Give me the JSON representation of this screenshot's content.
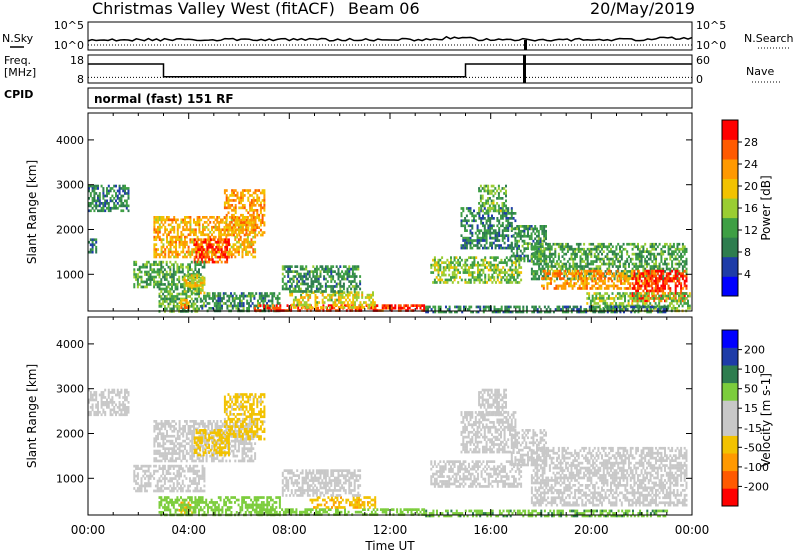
{
  "header": {
    "station": "Christmas Valley West (fitACF)",
    "beam": "Beam 06",
    "date": "20/May/2019"
  },
  "left_labels": {
    "nsky": "N.Sky",
    "freq_line1": "Freq.",
    "freq_line2": "[MHz]",
    "cpid": "CPID"
  },
  "right_labels": {
    "nsearch": "N.Search",
    "nave": "Nave"
  },
  "mode_label": "normal (fast) 151 RF",
  "colors": {
    "power_scale": [
      "#0000ff",
      "#1e3ca8",
      "#2e7d4f",
      "#3e9f44",
      "#9acd32",
      "#f2c200",
      "#ff9900",
      "#ff5a00",
      "#ff0000"
    ],
    "velocity_scale": [
      "#ff0000",
      "#ff5a00",
      "#ff9900",
      "#f2c200",
      "#c8c8c8",
      "#c8c8c8",
      "#7ccd3c",
      "#2e7d4f",
      "#1e3ca8",
      "#0000ff"
    ]
  },
  "chart_data": [
    {
      "type": "line",
      "name": "noise",
      "y_left_ticks": [
        "10^5",
        "10^0"
      ],
      "y_right_ticks": [
        "10^5",
        "10^0"
      ]
    },
    {
      "type": "line",
      "name": "frequency",
      "y_left_ticks": [
        "18",
        "8"
      ],
      "y_right_ticks": [
        "60",
        "0"
      ],
      "ylim_left": [
        8,
        18
      ],
      "ylim_right": [
        0,
        60
      ],
      "frequency_steps": [
        {
          "t": 0,
          "f": 14.8
        },
        {
          "t": 3.0,
          "f": 14.8
        },
        {
          "t": 3.0,
          "f": 10.2
        },
        {
          "t": 15.0,
          "f": 10.2
        },
        {
          "t": 15.0,
          "f": 14.8
        },
        {
          "t": 24.0,
          "f": 14.8
        }
      ],
      "nave_level": 12
    },
    {
      "type": "heatmap",
      "name": "power",
      "ylabel": "Slant Range [km]",
      "yticks": [
        1000,
        2000,
        3000,
        4000
      ],
      "ylim": [
        180,
        4600
      ],
      "xlim": [
        0,
        24
      ],
      "colorbar_label": "Power [dB]",
      "colorbar_ticks": [
        "4",
        "8",
        "12",
        "16",
        "20",
        "24",
        "28"
      ],
      "clim": [
        0,
        30
      ],
      "regions": [
        {
          "t0": 0.0,
          "t1": 1.6,
          "r0": 2400,
          "r1": 3000,
          "v": 9
        },
        {
          "t0": 0.0,
          "t1": 0.3,
          "r0": 1500,
          "r1": 1800,
          "v": 8
        },
        {
          "t0": 2.6,
          "t1": 6.6,
          "r0": 1400,
          "r1": 2300,
          "v": 20
        },
        {
          "t0": 4.2,
          "t1": 5.6,
          "r0": 1300,
          "r1": 1800,
          "v": 26
        },
        {
          "t0": 5.4,
          "t1": 7.0,
          "r0": 1900,
          "r1": 2900,
          "v": 21
        },
        {
          "t0": 1.8,
          "t1": 4.6,
          "r0": 700,
          "r1": 1300,
          "v": 12
        },
        {
          "t0": 3.8,
          "t1": 4.6,
          "r0": 600,
          "r1": 1000,
          "v": 18
        },
        {
          "t0": 2.8,
          "t1": 4.5,
          "r0": 200,
          "r1": 700,
          "v": 12
        },
        {
          "t0": 3.6,
          "t1": 4.0,
          "r0": 250,
          "r1": 450,
          "v": 22
        },
        {
          "t0": 4.5,
          "t1": 7.6,
          "r0": 200,
          "r1": 600,
          "v": 10
        },
        {
          "t0": 6.6,
          "t1": 13.4,
          "r0": 180,
          "r1": 330,
          "v": 27
        },
        {
          "t0": 8.0,
          "t1": 11.4,
          "r0": 250,
          "r1": 620,
          "v": 17
        },
        {
          "t0": 7.7,
          "t1": 10.8,
          "r0": 600,
          "r1": 1200,
          "v": 10
        },
        {
          "t0": 13.6,
          "t1": 17.2,
          "r0": 800,
          "r1": 1400,
          "v": 14
        },
        {
          "t0": 14.8,
          "t1": 17.0,
          "r0": 1600,
          "r1": 2500,
          "v": 9
        },
        {
          "t0": 15.5,
          "t1": 16.6,
          "r0": 2400,
          "r1": 3000,
          "v": 13
        },
        {
          "t0": 16.8,
          "t1": 18.2,
          "r0": 1300,
          "r1": 2100,
          "v": 10
        },
        {
          "t0": 17.6,
          "t1": 23.8,
          "r0": 900,
          "r1": 1700,
          "v": 11
        },
        {
          "t0": 18.0,
          "t1": 22.6,
          "r0": 700,
          "r1": 1100,
          "v": 22
        },
        {
          "t0": 21.6,
          "t1": 23.8,
          "r0": 400,
          "r1": 1100,
          "v": 27
        },
        {
          "t0": 19.8,
          "t1": 23.9,
          "r0": 200,
          "r1": 600,
          "v": 14
        },
        {
          "t0": 13.4,
          "t1": 23.0,
          "r0": 180,
          "r1": 300,
          "v": 9
        }
      ]
    },
    {
      "type": "heatmap",
      "name": "velocity",
      "ylabel": "Slant Range [km]",
      "yticks": [
        1000,
        2000,
        3000,
        4000
      ],
      "ylim": [
        180,
        4600
      ],
      "xlim": [
        0,
        24
      ],
      "xticks": [
        "00:00",
        "04:00",
        "08:00",
        "12:00",
        "16:00",
        "20:00",
        "00:00"
      ],
      "xlabel": "Time UT",
      "colorbar_label": "Velocity [m s-1]",
      "colorbar_ticks": [
        "-200",
        "-100",
        "-50",
        "-15",
        "15",
        "50",
        "100",
        "200"
      ],
      "clim": [
        -250,
        250
      ],
      "regions": [
        {
          "t0": 0.0,
          "t1": 1.6,
          "r0": 2400,
          "r1": 3000,
          "v": 0
        },
        {
          "t0": 2.6,
          "t1": 6.6,
          "r0": 1400,
          "r1": 2300,
          "v": 0
        },
        {
          "t0": 4.2,
          "t1": 5.6,
          "r0": 1500,
          "r1": 2100,
          "v": -30
        },
        {
          "t0": 5.4,
          "t1": 7.0,
          "r0": 1900,
          "r1": 2900,
          "v": -25
        },
        {
          "t0": 1.8,
          "t1": 4.6,
          "r0": 700,
          "r1": 1300,
          "v": 0
        },
        {
          "t0": 3.6,
          "t1": 4.2,
          "r0": 220,
          "r1": 480,
          "v": -45
        },
        {
          "t0": 2.8,
          "t1": 7.6,
          "r0": 200,
          "r1": 600,
          "v": 30
        },
        {
          "t0": 6.6,
          "t1": 13.4,
          "r0": 180,
          "r1": 330,
          "v": 30
        },
        {
          "t0": 8.8,
          "t1": 11.4,
          "r0": 330,
          "r1": 600,
          "v": -40
        },
        {
          "t0": 7.7,
          "t1": 10.8,
          "r0": 600,
          "r1": 1200,
          "v": 0
        },
        {
          "t0": 13.6,
          "t1": 17.2,
          "r0": 800,
          "r1": 1400,
          "v": 0
        },
        {
          "t0": 14.8,
          "t1": 17.0,
          "r0": 1600,
          "r1": 2500,
          "v": 0
        },
        {
          "t0": 15.5,
          "t1": 16.6,
          "r0": 2400,
          "r1": 3000,
          "v": 0
        },
        {
          "t0": 16.8,
          "t1": 18.2,
          "r0": 1300,
          "r1": 2100,
          "v": 0
        },
        {
          "t0": 17.6,
          "t1": 23.8,
          "r0": 400,
          "r1": 1700,
          "v": 0
        },
        {
          "t0": 13.4,
          "t1": 23.0,
          "r0": 180,
          "r1": 300,
          "v": 40
        }
      ]
    }
  ]
}
